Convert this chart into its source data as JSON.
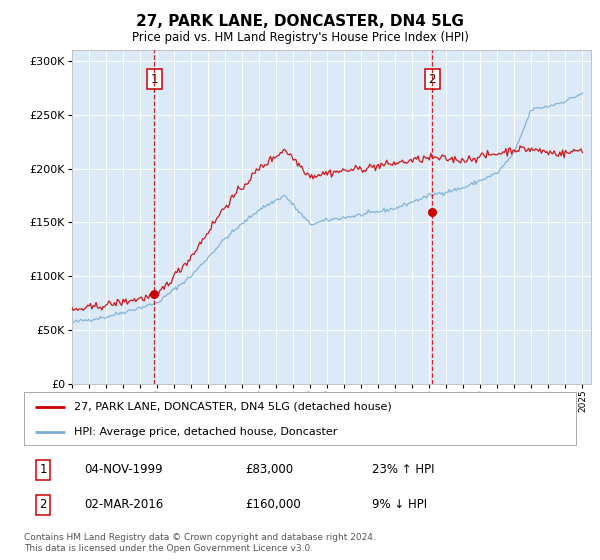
{
  "title": "27, PARK LANE, DONCASTER, DN4 5LG",
  "subtitle": "Price paid vs. HM Land Registry's House Price Index (HPI)",
  "legend_label_red": "27, PARK LANE, DONCASTER, DN4 5LG (detached house)",
  "legend_label_blue": "HPI: Average price, detached house, Doncaster",
  "sale1_date_label": "04-NOV-1999",
  "sale1_price": 83000,
  "sale1_pct": "23% ↑ HPI",
  "sale1_year": 1999.84,
  "sale2_date_label": "02-MAR-2016",
  "sale2_price": 160000,
  "sale2_pct": "9% ↓ HPI",
  "sale2_year": 2016.17,
  "ylim": [
    0,
    310000
  ],
  "xlim_start": 1995.0,
  "xlim_end": 2025.5,
  "footer": "Contains HM Land Registry data © Crown copyright and database right 2024.\nThis data is licensed under the Open Government Licence v3.0.",
  "background_color": "#dce9f7",
  "red_color": "#cc0000",
  "blue_color": "#7bafd4",
  "grid_color": "#ffffff",
  "vline_color": "#cc0000",
  "title_fontsize": 11,
  "subtitle_fontsize": 8.5,
  "ytick_fontsize": 8,
  "xtick_fontsize": 6.5,
  "legend_fontsize": 8,
  "table_fontsize": 8.5,
  "footer_fontsize": 6.5
}
